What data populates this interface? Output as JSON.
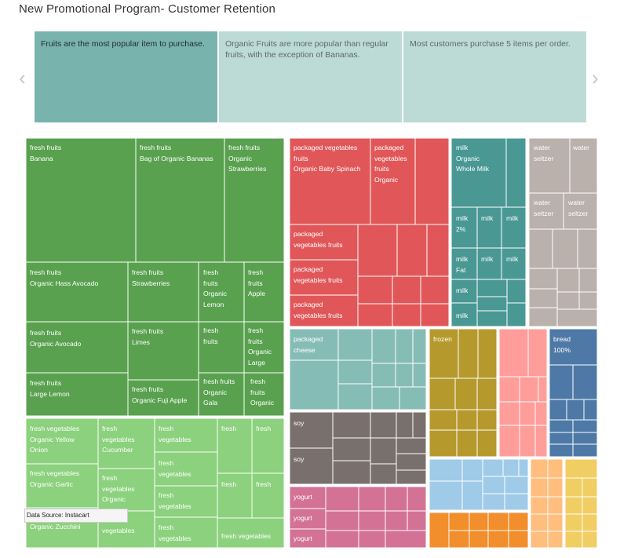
{
  "header": {
    "title": "New Promotional Program- Customer Retention"
  },
  "story": {
    "points": [
      {
        "text": "Fruits are the most popular item to purchase."
      },
      {
        "text": "Organic Fruits are more popular than regular fruits, with the exception of Bananas."
      },
      {
        "text": "Most customers purchase 5 items per order."
      }
    ],
    "prev_icon": "chevron-left-icon",
    "next_icon": "chevron-right-icon"
  },
  "colors": {
    "fresh_fruits": "#59A14F",
    "fresh_vegetables": "#8CD17D",
    "packaged_vegetables_fruits": "#E15759",
    "milk": "#499894",
    "water_seltzer": "#BAB0AC",
    "packaged_cheese": "#86BCB6",
    "frozen": "#B6992D",
    "soy": "#79706E",
    "yogurt": "#D37295",
    "bread": "#4E79A7",
    "pink_group": "#FF9D9A",
    "light_blue_group": "#A0CBE8",
    "orange_group": "#F28E2B",
    "peach_group": "#FFBE7D",
    "yellow_group": "#F1CE63",
    "story_active": "#79B3AE",
    "story_inactive": "#BCDAD6"
  },
  "labels": {
    "l1": "fresh fruits\nBanana",
    "l2": "fresh fruits\nBag of Organic Bananas",
    "l3": "fresh fruits\nOrganic\nStrawberries",
    "l4": "fresh fruits\nOrganic Hass Avocado",
    "l5": "fresh fruits\nStrawberries",
    "l6": "fresh\nfruits\nOrganic\nLemon",
    "l7": "fresh\nfruits\nApple",
    "l8": "fresh fruits\nOrganic Avocado",
    "l9": "fresh fruits\nLimes",
    "l10": "fresh\nfruits",
    "l11": "fresh\nfruits\nOrganic\nLarge",
    "l12": "fresh fruits\nLarge Lemon",
    "l13": "fresh fruits\nOrganic Fuji Apple",
    "l14": "fresh fruits\nOrganic\nGala",
    "l15": "fresh\nfruits\nOrganic",
    "v1": "fresh vegetables\nOrganic Yellow\nOnion",
    "v2": "fresh\nvegetables\nCucumber",
    "v3": "fresh\nvegetables",
    "v4": "fresh",
    "v5": "fresh",
    "v6": "fresh vegetables\nOrganic Garlic",
    "v7": "fresh\nvegetables\nOrganic",
    "v8": "fresh\nvegetables",
    "v9": "fresh",
    "v10": "fresh",
    "v11": "Organic Zucchini",
    "v12": "vegetables",
    "v13": "fresh\nvegetables",
    "v14": "fresh\nvegetables",
    "v15": "fresh vegetables",
    "p1": "packaged vegetables\nfruits\nOrganic Baby Spinach",
    "p2": "packaged\nvegetables\nfruits\nOrganic",
    "p3": "packaged\nvegetables fruits",
    "p4": "packaged\nvegetables fruits",
    "p5": "packaged\nvegetables fruits",
    "m1": "milk\nOrganic\nWhole Milk",
    "m2": "milk\n2%",
    "m3": "milk",
    "m4": "milk",
    "m5": "milk\nFat",
    "m6": "milk",
    "m7": "milk",
    "m8": "milk",
    "m9": "milk",
    "w1": "water\nseltzer",
    "w2": "water",
    "w3": "water\nseltzer",
    "w4": "water\nseltzer",
    "c1": "packaged\ncheese",
    "f1": "frozen",
    "b1": "bread\n100%",
    "s1": "soy",
    "s2": "soy",
    "y1": "yogurt",
    "y2": "yogurt",
    "y3": "yogurt"
  },
  "tooltip": {
    "text": "Data Source: Instacart"
  }
}
